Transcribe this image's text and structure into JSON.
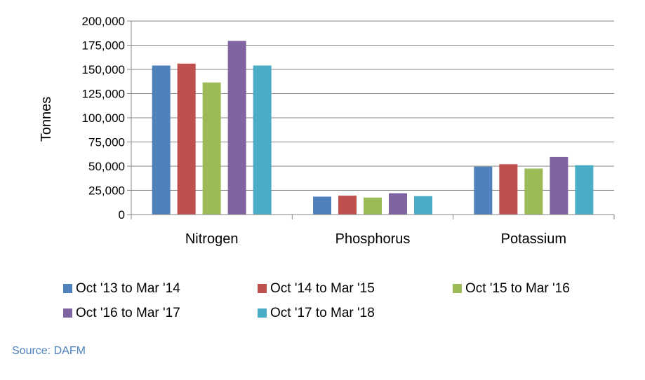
{
  "chart_data": {
    "type": "bar",
    "categories": [
      "Nitrogen",
      "Phosphorus",
      "Potassium"
    ],
    "series": [
      {
        "name": "Oct '13 to Mar '14",
        "color": "#4f81bd",
        "values": [
          154000,
          18500,
          49500
        ]
      },
      {
        "name": "Oct '14 to Mar '15",
        "color": "#c0504d",
        "values": [
          156000,
          19500,
          52000
        ]
      },
      {
        "name": "Oct '15 to Mar '16",
        "color": "#9bbb59",
        "values": [
          136500,
          17500,
          47500
        ]
      },
      {
        "name": "Oct '16 to Mar '17",
        "color": "#8064a2",
        "values": [
          179500,
          22000,
          59500
        ]
      },
      {
        "name": "Oct '17 to Mar '18",
        "color": "#4bacc6",
        "values": [
          154000,
          19000,
          51000
        ]
      }
    ],
    "ylabel": "Tonnes",
    "ylim": [
      0,
      200000
    ],
    "yticks": [
      0,
      25000,
      50000,
      75000,
      100000,
      125000,
      150000,
      175000,
      200000
    ],
    "ytick_labels": [
      "0",
      "25,000",
      "50,000",
      "75,000",
      "100,000",
      "125,000",
      "150,000",
      "175,000",
      "200,000"
    ],
    "grid": true,
    "legend_position": "bottom"
  },
  "source": "Source: DAFM"
}
